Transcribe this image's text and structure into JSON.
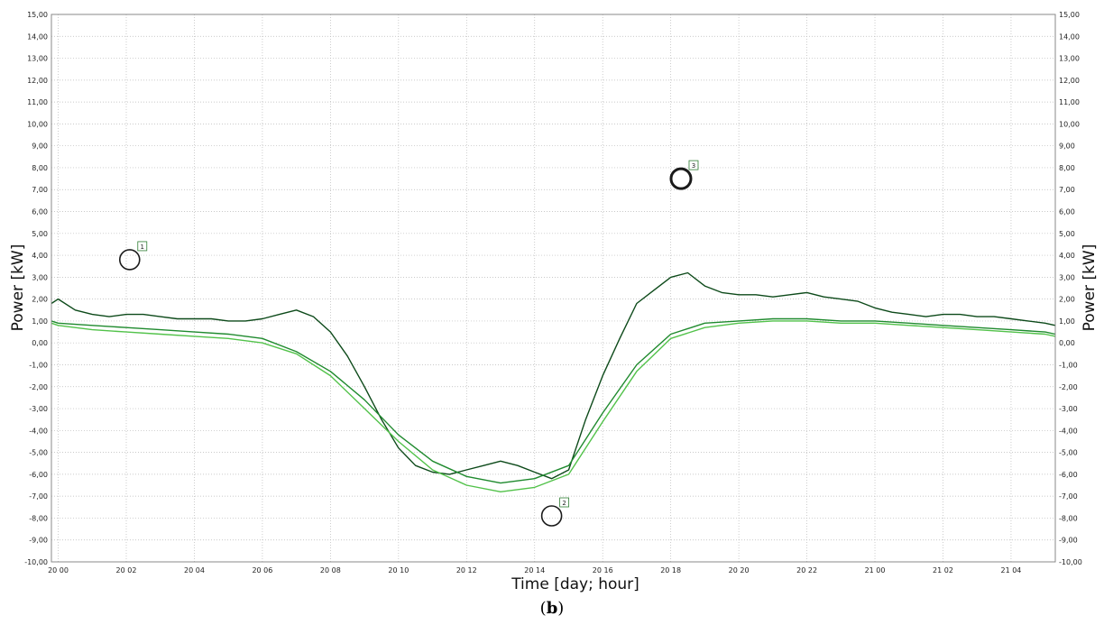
{
  "chart_data": {
    "type": "line",
    "xlabel": "Time [day; hour]",
    "ylabel_left": "Power [kW]",
    "ylabel_right": "Power [kW]",
    "ylim": [
      -10,
      15
    ],
    "y_ticks": [
      "-10,00",
      "-9,00",
      "-8,00",
      "-7,00",
      "-6,00",
      "-5,00",
      "-4,00",
      "-3,00",
      "-2,00",
      "-1,00",
      "0,00",
      "1,00",
      "2,00",
      "3,00",
      "4,00",
      "5,00",
      "6,00",
      "7,00",
      "8,00",
      "9,00",
      "10,00",
      "11,00",
      "12,00",
      "13,00",
      "14,00",
      "15,00"
    ],
    "x_ticks": [
      "20 00",
      "20 02",
      "20 04",
      "20 06",
      "20 08",
      "20 10",
      "20 12",
      "20 14",
      "20 16",
      "20 18",
      "20 20",
      "20 22",
      "21 00",
      "21 02",
      "21 04"
    ],
    "x_range_hours": [
      -0.2,
      29.3
    ],
    "grid": true,
    "colors": {
      "dark": "#0d4a1a",
      "mid": "#1f8a2e",
      "light": "#52c24a"
    },
    "series": [
      {
        "color_key": "dark",
        "x": [
          -0.2,
          0.0,
          0.5,
          1.0,
          1.5,
          2.0,
          2.5,
          3.0,
          3.5,
          4.0,
          4.5,
          5.0,
          5.5,
          6.0,
          6.5,
          7.0,
          7.5,
          8.0,
          8.5,
          9.0,
          9.5,
          10.0,
          10.5,
          11.0,
          11.5,
          12.0,
          12.5,
          13.0,
          13.5,
          14.0,
          14.5,
          15.0,
          15.5,
          16.0,
          16.5,
          17.0,
          17.5,
          18.0,
          18.5,
          19.0,
          19.5,
          20.0,
          20.5,
          21.0,
          21.5,
          22.0,
          22.5,
          23.0,
          23.5,
          24.0,
          24.5,
          25.0,
          25.5,
          26.0,
          26.5,
          27.0,
          27.5,
          28.0,
          28.5,
          29.0,
          29.3
        ],
        "y": [
          1.8,
          2.0,
          1.5,
          1.3,
          1.2,
          1.3,
          1.3,
          1.2,
          1.1,
          1.1,
          1.1,
          1.0,
          1.0,
          1.1,
          1.3,
          1.5,
          1.2,
          0.5,
          -0.6,
          -2.0,
          -3.5,
          -4.8,
          -5.6,
          -5.9,
          -6.0,
          -5.8,
          -5.6,
          -5.4,
          -5.6,
          -5.9,
          -6.2,
          -5.8,
          -3.5,
          -1.5,
          0.2,
          1.8,
          2.4,
          3.0,
          3.2,
          2.6,
          2.3,
          2.2,
          2.2,
          2.1,
          2.2,
          2.3,
          2.1,
          2.0,
          1.9,
          1.6,
          1.4,
          1.3,
          1.2,
          1.3,
          1.3,
          1.2,
          1.2,
          1.1,
          1.0,
          0.9,
          0.8
        ]
      },
      {
        "color_key": "light",
        "x": [
          -0.2,
          0.0,
          1.0,
          2.0,
          3.0,
          4.0,
          5.0,
          6.0,
          7.0,
          8.0,
          9.0,
          10.0,
          11.0,
          12.0,
          13.0,
          14.0,
          15.0,
          16.0,
          17.0,
          18.0,
          19.0,
          20.0,
          21.0,
          22.0,
          23.0,
          24.0,
          25.0,
          26.0,
          27.0,
          28.0,
          29.0,
          29.3
        ],
        "y": [
          0.9,
          0.8,
          0.6,
          0.5,
          0.4,
          0.3,
          0.2,
          0.0,
          -0.5,
          -1.5,
          -3.0,
          -4.5,
          -5.8,
          -6.5,
          -6.8,
          -6.6,
          -6.0,
          -3.6,
          -1.3,
          0.2,
          0.7,
          0.9,
          1.0,
          1.0,
          0.9,
          0.9,
          0.8,
          0.7,
          0.6,
          0.5,
          0.4,
          0.3
        ]
      },
      {
        "color_key": "mid",
        "x": [
          -0.2,
          0.0,
          1.0,
          2.0,
          3.0,
          4.0,
          5.0,
          6.0,
          7.0,
          8.0,
          9.0,
          10.0,
          11.0,
          12.0,
          13.0,
          14.0,
          15.0,
          16.0,
          17.0,
          18.0,
          19.0,
          20.0,
          21.0,
          22.0,
          23.0,
          24.0,
          25.0,
          26.0,
          27.0,
          28.0,
          29.0,
          29.3
        ],
        "y": [
          1.0,
          0.9,
          0.8,
          0.7,
          0.6,
          0.5,
          0.4,
          0.2,
          -0.4,
          -1.3,
          -2.6,
          -4.2,
          -5.4,
          -6.1,
          -6.4,
          -6.2,
          -5.6,
          -3.2,
          -1.0,
          0.4,
          0.9,
          1.0,
          1.1,
          1.1,
          1.0,
          1.0,
          0.9,
          0.8,
          0.7,
          0.6,
          0.5,
          0.4
        ]
      }
    ],
    "annotations": [
      {
        "label": "1",
        "x": 2.1,
        "y": 3.8
      },
      {
        "label": "2",
        "x": 14.5,
        "y": -7.9
      },
      {
        "label": "3",
        "x": 18.3,
        "y": 7.5
      }
    ]
  },
  "caption": {
    "open": "(",
    "letter": "b",
    "close": ")"
  }
}
